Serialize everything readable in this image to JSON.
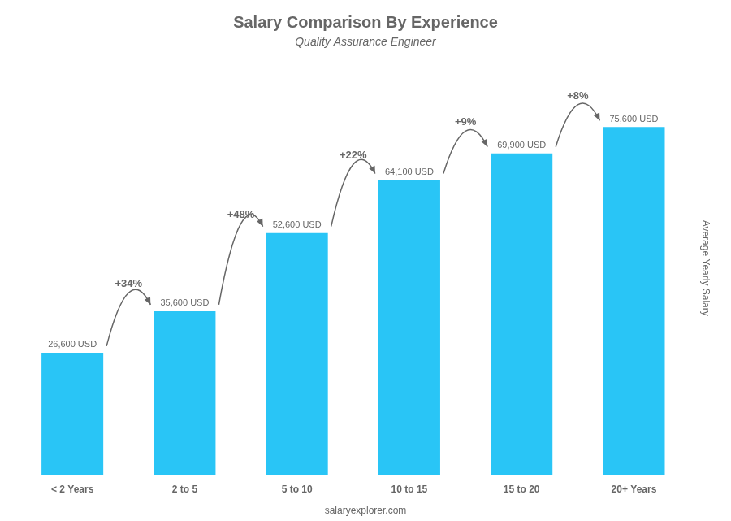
{
  "chart_data": {
    "type": "bar",
    "title": "Salary Comparison By Experience",
    "subtitle": "Quality Assurance Engineer",
    "ylabel": "Average Yearly Salary",
    "watermark": "salaryexplorer.com",
    "categories": [
      "< 2 Years",
      "2 to 5",
      "5 to 10",
      "10 to 15",
      "15 to 20",
      "20+ Years"
    ],
    "values": [
      26600,
      35600,
      52600,
      64100,
      69900,
      75600
    ],
    "value_labels": [
      "26,600 USD",
      "35,600 USD",
      "52,600 USD",
      "64,100 USD",
      "69,900 USD",
      "75,600 USD"
    ],
    "annotations": [
      "+34%",
      "+48%",
      "+22%",
      "+9%",
      "+8%"
    ],
    "color": "#29c5f6",
    "data_labels": true,
    "ylim": [
      0,
      90000
    ],
    "grid": false,
    "tick_labels": "x"
  }
}
